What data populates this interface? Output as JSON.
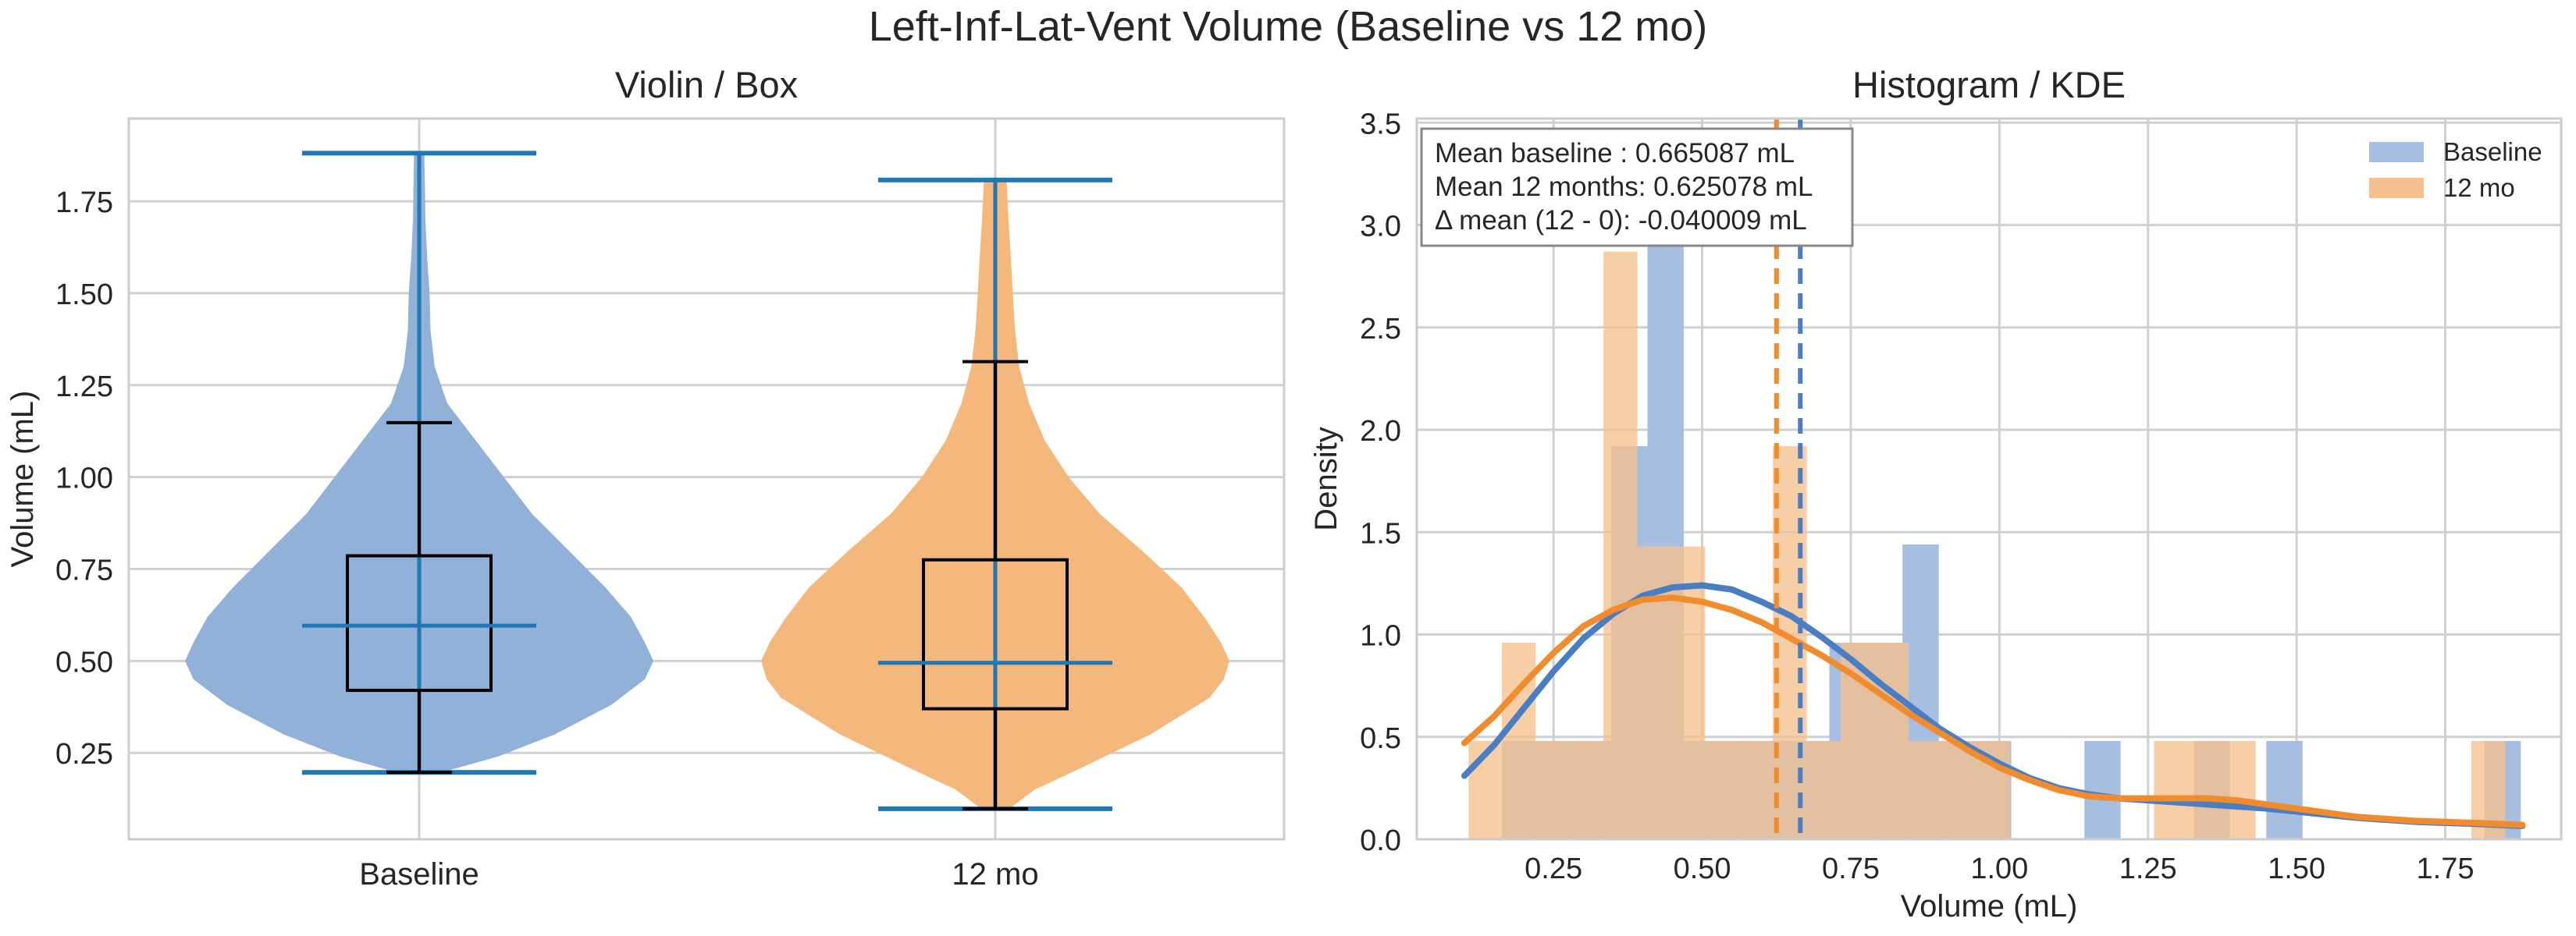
{
  "figure": {
    "title": "Left-Inf-Lat-Vent Volume (Baseline vs 12 mo)",
    "colors": {
      "baseline": "#4a7ec2",
      "followup": "#f08c2e",
      "whisker": "#1f77b4",
      "box": "#000000",
      "grid": "#d0d0d0"
    }
  },
  "chart_data": [
    {
      "type": "violin",
      "title": "Violin / Box",
      "ylabel": "Volume (mL)",
      "xlabel": "",
      "categories": [
        "Baseline",
        "12 mo"
      ],
      "ylim": [
        0.015,
        1.975
      ],
      "yticks": [
        0.25,
        0.5,
        0.75,
        1.0,
        1.25,
        1.5,
        1.75
      ],
      "ytick_labels": [
        "0.25",
        "0.50",
        "0.75",
        "1.00",
        "1.25",
        "1.50",
        "1.75"
      ],
      "grid": true,
      "series": [
        {
          "name": "Baseline",
          "color": "#92b1d9",
          "min": 0.197,
          "max": 1.881,
          "median_violin": 0.596,
          "box": {
            "q1": 0.42,
            "median": 0.596,
            "q3": 0.786,
            "whisker_low": 0.197,
            "whisker_high": 1.148
          },
          "density_profile": [
            [
              0.197,
              0.08
            ],
            [
              0.24,
              0.28
            ],
            [
              0.3,
              0.48
            ],
            [
              0.38,
              0.68
            ],
            [
              0.45,
              0.8
            ],
            [
              0.5,
              0.83
            ],
            [
              0.55,
              0.8
            ],
            [
              0.62,
              0.75
            ],
            [
              0.7,
              0.66
            ],
            [
              0.8,
              0.53
            ],
            [
              0.9,
              0.4
            ],
            [
              1.0,
              0.3
            ],
            [
              1.1,
              0.2
            ],
            [
              1.2,
              0.1
            ],
            [
              1.3,
              0.055
            ],
            [
              1.4,
              0.04
            ],
            [
              1.5,
              0.037
            ],
            [
              1.6,
              0.028
            ],
            [
              1.7,
              0.022
            ],
            [
              1.8,
              0.02
            ],
            [
              1.881,
              0.018
            ]
          ]
        },
        {
          "name": "12 mo",
          "color": "#f4b77c",
          "min": 0.098,
          "max": 1.808,
          "median_violin": 0.495,
          "box": {
            "q1": 0.37,
            "median": 0.495,
            "q3": 0.775,
            "whisker_low": 0.098,
            "whisker_high": 1.314
          },
          "density_profile": [
            [
              0.098,
              0.05
            ],
            [
              0.15,
              0.14
            ],
            [
              0.2,
              0.28
            ],
            [
              0.3,
              0.55
            ],
            [
              0.4,
              0.76
            ],
            [
              0.45,
              0.81
            ],
            [
              0.5,
              0.83
            ],
            [
              0.55,
              0.8
            ],
            [
              0.62,
              0.74
            ],
            [
              0.7,
              0.66
            ],
            [
              0.8,
              0.52
            ],
            [
              0.9,
              0.37
            ],
            [
              1.0,
              0.26
            ],
            [
              1.1,
              0.175
            ],
            [
              1.2,
              0.12
            ],
            [
              1.3,
              0.085
            ],
            [
              1.4,
              0.07
            ],
            [
              1.5,
              0.062
            ],
            [
              1.6,
              0.055
            ],
            [
              1.7,
              0.047
            ],
            [
              1.808,
              0.04
            ]
          ]
        }
      ]
    },
    {
      "type": "histogram",
      "title": "Histogram / KDE",
      "xlabel": "Volume (mL)",
      "ylabel": "Density",
      "xlim": [
        0.02,
        1.945
      ],
      "ylim": [
        0,
        3.52
      ],
      "xticks": [
        0.25,
        0.5,
        0.75,
        1.0,
        1.25,
        1.5,
        1.75
      ],
      "xtick_labels": [
        "0.25",
        "0.50",
        "0.75",
        "1.00",
        "1.25",
        "1.50",
        "1.75"
      ],
      "yticks": [
        0,
        0.5,
        1.0,
        1.5,
        2.0,
        2.5,
        3.0,
        3.5
      ],
      "ytick_labels": [
        "0.0",
        "0.5",
        "1.0",
        "1.5",
        "2.0",
        "2.5",
        "3.0",
        "3.5"
      ],
      "grid": true,
      "legend_position": "top-right",
      "annotation": [
        "Mean baseline : 0.665087 mL",
        "Mean 12 months: 0.625078 mL",
        "Δ mean (12 - 0): -0.040009 mL"
      ],
      "series": [
        {
          "name": "Baseline",
          "color": "#4a7ec2",
          "hist_color": "#a6bfe0",
          "mean": 0.665087,
          "bins": [
            [
              0.163,
              0.224,
              0.48
            ],
            [
              0.224,
              0.286,
              0.48
            ],
            [
              0.286,
              0.347,
              0.48
            ],
            [
              0.347,
              0.408,
              1.92
            ],
            [
              0.408,
              0.469,
              3.35
            ],
            [
              0.469,
              0.531,
              0.48
            ],
            [
              0.531,
              0.592,
              0.48
            ],
            [
              0.592,
              0.653,
              0.48
            ],
            [
              0.653,
              0.714,
              0.48
            ],
            [
              0.714,
              0.776,
              0.96
            ],
            [
              0.776,
              0.837,
              0.96
            ],
            [
              0.837,
              0.898,
              1.44
            ],
            [
              0.898,
              0.959,
              0.48
            ],
            [
              0.959,
              1.02,
              0.48
            ],
            [
              1.143,
              1.204,
              0.48
            ],
            [
              1.327,
              1.388,
              0.48
            ],
            [
              1.449,
              1.51,
              0.48
            ],
            [
              1.816,
              1.877,
              0.48
            ]
          ],
          "kde": [
            [
              0.1,
              0.31
            ],
            [
              0.15,
              0.46
            ],
            [
              0.2,
              0.64
            ],
            [
              0.25,
              0.82
            ],
            [
              0.3,
              0.98
            ],
            [
              0.35,
              1.1
            ],
            [
              0.4,
              1.19
            ],
            [
              0.45,
              1.23
            ],
            [
              0.5,
              1.24
            ],
            [
              0.55,
              1.22
            ],
            [
              0.6,
              1.16
            ],
            [
              0.65,
              1.09
            ],
            [
              0.7,
              0.99
            ],
            [
              0.75,
              0.88
            ],
            [
              0.8,
              0.76
            ],
            [
              0.85,
              0.65
            ],
            [
              0.9,
              0.54
            ],
            [
              0.95,
              0.45
            ],
            [
              1.0,
              0.37
            ],
            [
              1.05,
              0.3
            ],
            [
              1.1,
              0.25
            ],
            [
              1.15,
              0.22
            ],
            [
              1.2,
              0.2
            ],
            [
              1.25,
              0.19
            ],
            [
              1.3,
              0.18
            ],
            [
              1.35,
              0.17
            ],
            [
              1.4,
              0.16
            ],
            [
              1.45,
              0.15
            ],
            [
              1.5,
              0.135
            ],
            [
              1.55,
              0.12
            ],
            [
              1.6,
              0.105
            ],
            [
              1.65,
              0.095
            ],
            [
              1.7,
              0.085
            ],
            [
              1.75,
              0.08
            ],
            [
              1.8,
              0.075
            ],
            [
              1.88,
              0.065
            ]
          ]
        },
        {
          "name": "12 mo",
          "color": "#f08c2e",
          "hist_color": "#f6c08e",
          "mean": 0.625078,
          "bins": [
            [
              0.107,
              0.163,
              0.48
            ],
            [
              0.163,
              0.22,
              0.96
            ],
            [
              0.22,
              0.277,
              0.48
            ],
            [
              0.277,
              0.334,
              0.48
            ],
            [
              0.334,
              0.391,
              2.87
            ],
            [
              0.391,
              0.448,
              1.43
            ],
            [
              0.448,
              0.505,
              1.43
            ],
            [
              0.505,
              0.562,
              0.48
            ],
            [
              0.562,
              0.619,
              0.48
            ],
            [
              0.619,
              0.676,
              1.92
            ],
            [
              0.676,
              0.733,
              0.48
            ],
            [
              0.733,
              0.79,
              0.96
            ],
            [
              0.79,
              0.847,
              0.96
            ],
            [
              0.847,
              0.904,
              0.48
            ],
            [
              0.904,
              0.961,
              0.48
            ],
            [
              0.961,
              1.018,
              0.48
            ],
            [
              1.26,
              1.317,
              0.48
            ],
            [
              1.317,
              1.374,
              0.48
            ],
            [
              1.374,
              1.431,
              0.48
            ],
            [
              1.794,
              1.851,
              0.48
            ]
          ],
          "kde": [
            [
              0.1,
              0.47
            ],
            [
              0.15,
              0.6
            ],
            [
              0.2,
              0.76
            ],
            [
              0.25,
              0.91
            ],
            [
              0.3,
              1.04
            ],
            [
              0.35,
              1.12
            ],
            [
              0.4,
              1.17
            ],
            [
              0.45,
              1.18
            ],
            [
              0.5,
              1.16
            ],
            [
              0.55,
              1.12
            ],
            [
              0.6,
              1.06
            ],
            [
              0.65,
              0.98
            ],
            [
              0.7,
              0.9
            ],
            [
              0.75,
              0.81
            ],
            [
              0.8,
              0.71
            ],
            [
              0.85,
              0.61
            ],
            [
              0.9,
              0.52
            ],
            [
              0.95,
              0.43
            ],
            [
              1.0,
              0.35
            ],
            [
              1.05,
              0.29
            ],
            [
              1.1,
              0.24
            ],
            [
              1.15,
              0.21
            ],
            [
              1.2,
              0.2
            ],
            [
              1.25,
              0.2
            ],
            [
              1.3,
              0.2
            ],
            [
              1.35,
              0.2
            ],
            [
              1.4,
              0.19
            ],
            [
              1.45,
              0.17
            ],
            [
              1.5,
              0.15
            ],
            [
              1.55,
              0.13
            ],
            [
              1.6,
              0.11
            ],
            [
              1.65,
              0.1
            ],
            [
              1.7,
              0.09
            ],
            [
              1.75,
              0.085
            ],
            [
              1.8,
              0.08
            ],
            [
              1.88,
              0.07
            ]
          ]
        }
      ]
    }
  ]
}
